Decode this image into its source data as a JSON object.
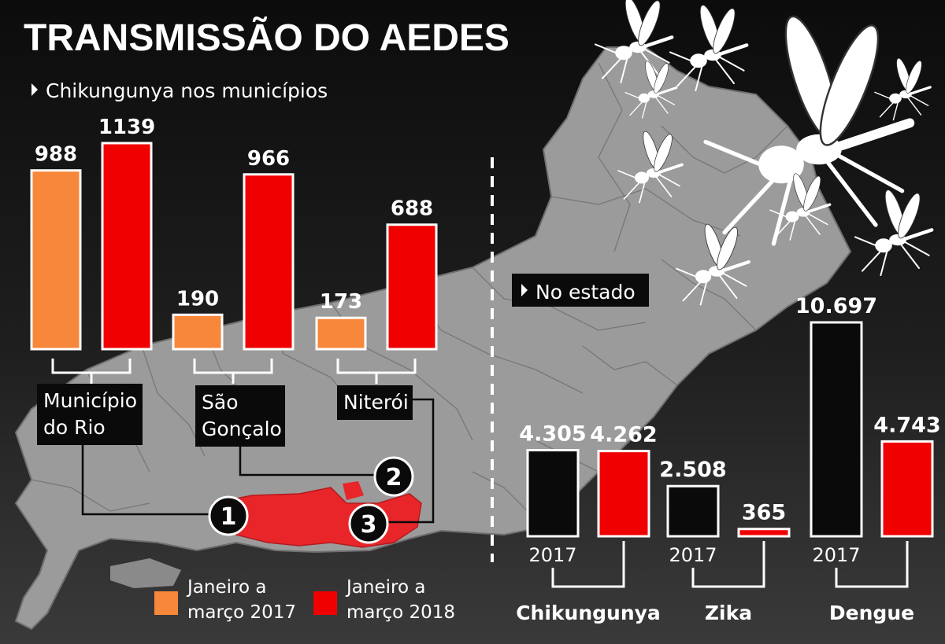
{
  "title": "TRANSMISSÃO DO AEDES",
  "colors": {
    "orange": "#f7873a",
    "red": "#f00000",
    "black": "#0a0a0a",
    "map": "#9a9a9a",
    "map_highlight": "#e8262a"
  },
  "chart_data": [
    {
      "type": "bar",
      "title": "Chikungunya nos municípios",
      "categories": [
        "Município do Rio",
        "São Gonçalo",
        "Niterói"
      ],
      "category_lines": [
        [
          "Município",
          "do Rio"
        ],
        [
          "São",
          "Gonçalo"
        ],
        [
          "Niterói"
        ]
      ],
      "map_markers": [
        "1",
        "2",
        "3"
      ],
      "series": [
        {
          "name": "Janeiro a março 2017",
          "values": [
            988,
            190,
            173
          ],
          "labels": [
            "988",
            "190",
            "173"
          ]
        },
        {
          "name": "Janeiro a março 2018",
          "values": [
            1139,
            966,
            688
          ],
          "labels": [
            "1139",
            "966",
            "688"
          ]
        }
      ],
      "legend": [
        {
          "line1": "Janeiro a",
          "line2": "março 2017"
        },
        {
          "line1": "Janeiro a",
          "line2": "março 2018"
        }
      ],
      "ylim": [
        0,
        1139
      ]
    },
    {
      "type": "bar",
      "title": "No estado",
      "categories": [
        "Chikungunya",
        "Zika",
        "Dengue"
      ],
      "year_label": "2017",
      "series": [
        {
          "name": "2017",
          "values": [
            4305,
            2508,
            10697
          ],
          "labels": [
            "4.305",
            "2.508",
            "10.697"
          ]
        },
        {
          "name": "2018",
          "values": [
            4262,
            365,
            4743
          ],
          "labels": [
            "4.262",
            "365",
            "4.743"
          ]
        }
      ],
      "ylim": [
        0,
        10697
      ]
    }
  ]
}
